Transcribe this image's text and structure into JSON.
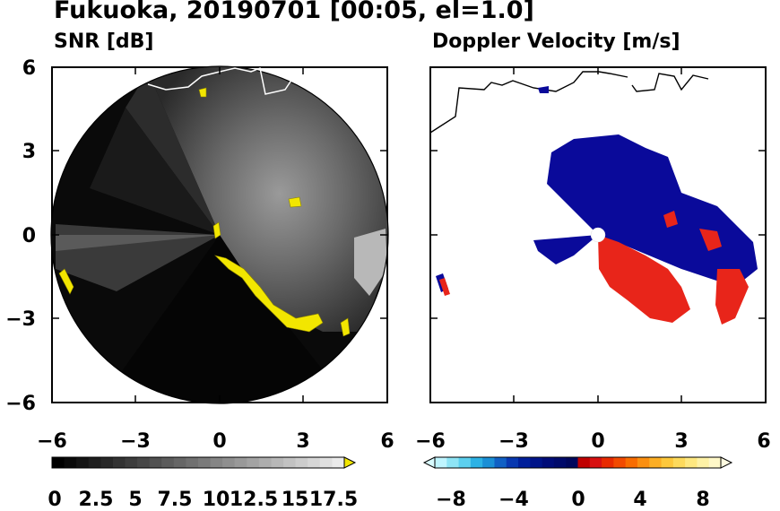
{
  "figure": {
    "title": "Fukuoka, 20190701 [00:05, el=1.0]"
  },
  "panels": [
    {
      "subtitle": "SNR [dB]",
      "x_ticks": [
        "−6",
        "−3",
        "0",
        "3",
        "6"
      ],
      "y_ticks": [
        "6",
        "3",
        "0",
        "−3",
        "−6"
      ],
      "colorbar": {
        "labels": [
          "0",
          "2.5",
          "5",
          "7.5",
          "10",
          "12.5",
          "15",
          "17.5"
        ],
        "colors": [
          "#000000",
          "#0a0a0a",
          "#141414",
          "#1e1e1e",
          "#282828",
          "#333333",
          "#3d3d3d",
          "#474747",
          "#515151",
          "#5c5c5c",
          "#666666",
          "#707070",
          "#7a7a7a",
          "#858585",
          "#8f8f8f",
          "#999999",
          "#a3a3a3",
          "#adadad",
          "#b8b8b8",
          "#c2c2c2",
          "#cccccc",
          "#d6d6d6",
          "#e0e0e0",
          "#ebebeb"
        ],
        "extend_color": "#f2e600"
      }
    },
    {
      "subtitle": "Doppler Velocity [m/s]",
      "x_ticks": [
        "−6",
        "−3",
        "0",
        "3",
        "6"
      ],
      "colorbar": {
        "labels": [
          "−8",
          "−4",
          "0",
          "4",
          "8"
        ],
        "colors": [
          "#bff5ff",
          "#8ee4f5",
          "#5ccfee",
          "#2cb2e5",
          "#1a8fd6",
          "#1060c4",
          "#0838b0",
          "#001f9a",
          "#001489",
          "#000c78",
          "#000a6a",
          "#00075c",
          "#c00000",
          "#d81010",
          "#e82a00",
          "#f24a00",
          "#f86c00",
          "#fb8f10",
          "#fcae24",
          "#fdc83c",
          "#fdda5c",
          "#fee880",
          "#fef2a6",
          "#fff8c8"
        ],
        "extend_low": "#d8fbff",
        "extend_high": "#fffbe0"
      }
    }
  ],
  "colors": {
    "accent_snr": "#f2e600",
    "doppler_negative": "#0a0a9a",
    "doppler_positive": "#e8251a"
  }
}
